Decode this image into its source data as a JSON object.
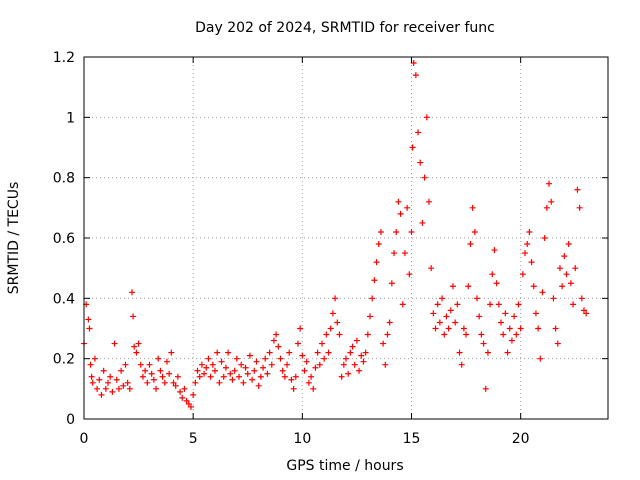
{
  "chart_data": {
    "type": "scatter",
    "title": "Day 202 of 2024, SRMTID for receiver func",
    "xlabel": "GPS time / hours",
    "ylabel": "SRMTID / TECUs",
    "xlim": [
      0,
      24
    ],
    "ylim": [
      0,
      1.2
    ],
    "xticks": [
      0,
      5,
      10,
      15,
      20
    ],
    "xtick_labels": [
      "0",
      "5",
      "10",
      "15",
      "20"
    ],
    "yticks": [
      0,
      0.2,
      0.4,
      0.6,
      0.8,
      1,
      1.2
    ],
    "ytick_labels": [
      "0",
      "0.2",
      "0.4",
      "0.6",
      "0.8",
      "1",
      "1.2"
    ],
    "grid": true,
    "marker": "+",
    "series": [
      {
        "name": "SRMTID",
        "color": "#ff0000",
        "x": [
          0.0,
          0.1,
          0.2,
          0.25,
          0.3,
          0.35,
          0.4,
          0.5,
          0.6,
          0.7,
          0.8,
          0.9,
          1.0,
          1.1,
          1.2,
          1.3,
          1.4,
          1.5,
          1.6,
          1.7,
          1.8,
          1.9,
          2.0,
          2.1,
          2.2,
          2.25,
          2.3,
          2.4,
          2.5,
          2.6,
          2.7,
          2.8,
          2.9,
          3.0,
          3.1,
          3.2,
          3.3,
          3.4,
          3.5,
          3.6,
          3.7,
          3.8,
          3.9,
          4.0,
          4.1,
          4.2,
          4.3,
          4.4,
          4.5,
          4.6,
          4.7,
          4.8,
          4.9,
          5.0,
          5.1,
          5.2,
          5.3,
          5.4,
          5.5,
          5.6,
          5.7,
          5.8,
          5.9,
          6.0,
          6.1,
          6.2,
          6.3,
          6.4,
          6.5,
          6.6,
          6.7,
          6.8,
          6.9,
          7.0,
          7.1,
          7.2,
          7.3,
          7.4,
          7.5,
          7.6,
          7.7,
          7.8,
          7.9,
          8.0,
          8.1,
          8.2,
          8.3,
          8.4,
          8.5,
          8.6,
          8.7,
          8.8,
          8.9,
          9.0,
          9.1,
          9.2,
          9.3,
          9.4,
          9.5,
          9.6,
          9.7,
          9.8,
          9.9,
          10.0,
          10.1,
          10.2,
          10.3,
          10.4,
          10.5,
          10.6,
          10.7,
          10.8,
          10.9,
          11.0,
          11.1,
          11.2,
          11.3,
          11.4,
          11.5,
          11.6,
          11.7,
          11.8,
          11.9,
          12.0,
          12.1,
          12.2,
          12.3,
          12.4,
          12.5,
          12.6,
          12.7,
          12.8,
          12.9,
          13.0,
          13.1,
          13.2,
          13.3,
          13.4,
          13.5,
          13.6,
          13.7,
          13.8,
          13.9,
          14.0,
          14.1,
          14.2,
          14.3,
          14.4,
          14.5,
          14.6,
          14.7,
          14.8,
          14.9,
          15.0,
          15.05,
          15.1,
          15.2,
          15.3,
          15.4,
          15.5,
          15.6,
          15.7,
          15.8,
          15.9,
          16.0,
          16.1,
          16.2,
          16.3,
          16.4,
          16.5,
          16.6,
          16.7,
          16.8,
          16.9,
          17.0,
          17.1,
          17.2,
          17.3,
          17.4,
          17.5,
          17.6,
          17.7,
          17.8,
          17.9,
          18.0,
          18.1,
          18.2,
          18.3,
          18.4,
          18.5,
          18.6,
          18.7,
          18.8,
          18.9,
          19.0,
          19.1,
          19.2,
          19.3,
          19.4,
          19.5,
          19.6,
          19.7,
          19.8,
          19.9,
          20.0,
          20.1,
          20.2,
          20.3,
          20.4,
          20.5,
          20.6,
          20.7,
          20.8,
          20.9,
          21.0,
          21.1,
          21.2,
          21.3,
          21.4,
          21.5,
          21.6,
          21.7,
          21.8,
          21.9,
          22.0,
          22.1,
          22.2,
          22.3,
          22.4,
          22.5,
          22.6,
          22.7,
          22.8,
          22.9,
          23.0
        ],
        "y": [
          0.25,
          0.38,
          0.33,
          0.3,
          0.18,
          0.14,
          0.12,
          0.2,
          0.1,
          0.13,
          0.08,
          0.16,
          0.1,
          0.12,
          0.14,
          0.09,
          0.25,
          0.13,
          0.1,
          0.16,
          0.11,
          0.18,
          0.12,
          0.1,
          0.42,
          0.34,
          0.24,
          0.22,
          0.25,
          0.18,
          0.14,
          0.16,
          0.12,
          0.18,
          0.15,
          0.13,
          0.1,
          0.2,
          0.16,
          0.14,
          0.12,
          0.19,
          0.15,
          0.22,
          0.12,
          0.11,
          0.14,
          0.09,
          0.07,
          0.1,
          0.06,
          0.05,
          0.04,
          0.08,
          0.12,
          0.16,
          0.14,
          0.18,
          0.15,
          0.17,
          0.2,
          0.14,
          0.18,
          0.16,
          0.22,
          0.12,
          0.19,
          0.14,
          0.17,
          0.22,
          0.15,
          0.13,
          0.16,
          0.2,
          0.14,
          0.18,
          0.12,
          0.17,
          0.15,
          0.21,
          0.13,
          0.16,
          0.19,
          0.11,
          0.14,
          0.17,
          0.2,
          0.15,
          0.22,
          0.18,
          0.26,
          0.28,
          0.24,
          0.2,
          0.16,
          0.14,
          0.18,
          0.22,
          0.13,
          0.1,
          0.14,
          0.25,
          0.3,
          0.21,
          0.16,
          0.19,
          0.12,
          0.14,
          0.1,
          0.17,
          0.22,
          0.18,
          0.25,
          0.2,
          0.28,
          0.22,
          0.3,
          0.35,
          0.4,
          0.32,
          0.28,
          0.14,
          0.18,
          0.2,
          0.15,
          0.22,
          0.24,
          0.18,
          0.26,
          0.16,
          0.21,
          0.19,
          0.22,
          0.28,
          0.34,
          0.4,
          0.46,
          0.52,
          0.58,
          0.62,
          0.25,
          0.18,
          0.28,
          0.32,
          0.45,
          0.55,
          0.62,
          0.72,
          0.68,
          0.38,
          0.55,
          0.7,
          0.48,
          0.62,
          0.9,
          1.18,
          1.14,
          0.95,
          0.85,
          0.65,
          0.8,
          1.0,
          0.72,
          0.5,
          0.35,
          0.3,
          0.38,
          0.32,
          0.4,
          0.28,
          0.34,
          0.3,
          0.36,
          0.44,
          0.32,
          0.38,
          0.22,
          0.18,
          0.3,
          0.28,
          0.44,
          0.58,
          0.7,
          0.62,
          0.4,
          0.34,
          0.28,
          0.25,
          0.1,
          0.22,
          0.38,
          0.48,
          0.56,
          0.45,
          0.38,
          0.32,
          0.28,
          0.35,
          0.22,
          0.3,
          0.26,
          0.34,
          0.28,
          0.38,
          0.3,
          0.48,
          0.55,
          0.58,
          0.62,
          0.52,
          0.44,
          0.35,
          0.3,
          0.2,
          0.42,
          0.6,
          0.7,
          0.78,
          0.72,
          0.4,
          0.3,
          0.25,
          0.5,
          0.44,
          0.54,
          0.48,
          0.58,
          0.45,
          0.38,
          0.5,
          0.76,
          0.7,
          0.4,
          0.36,
          0.35
        ]
      }
    ]
  }
}
